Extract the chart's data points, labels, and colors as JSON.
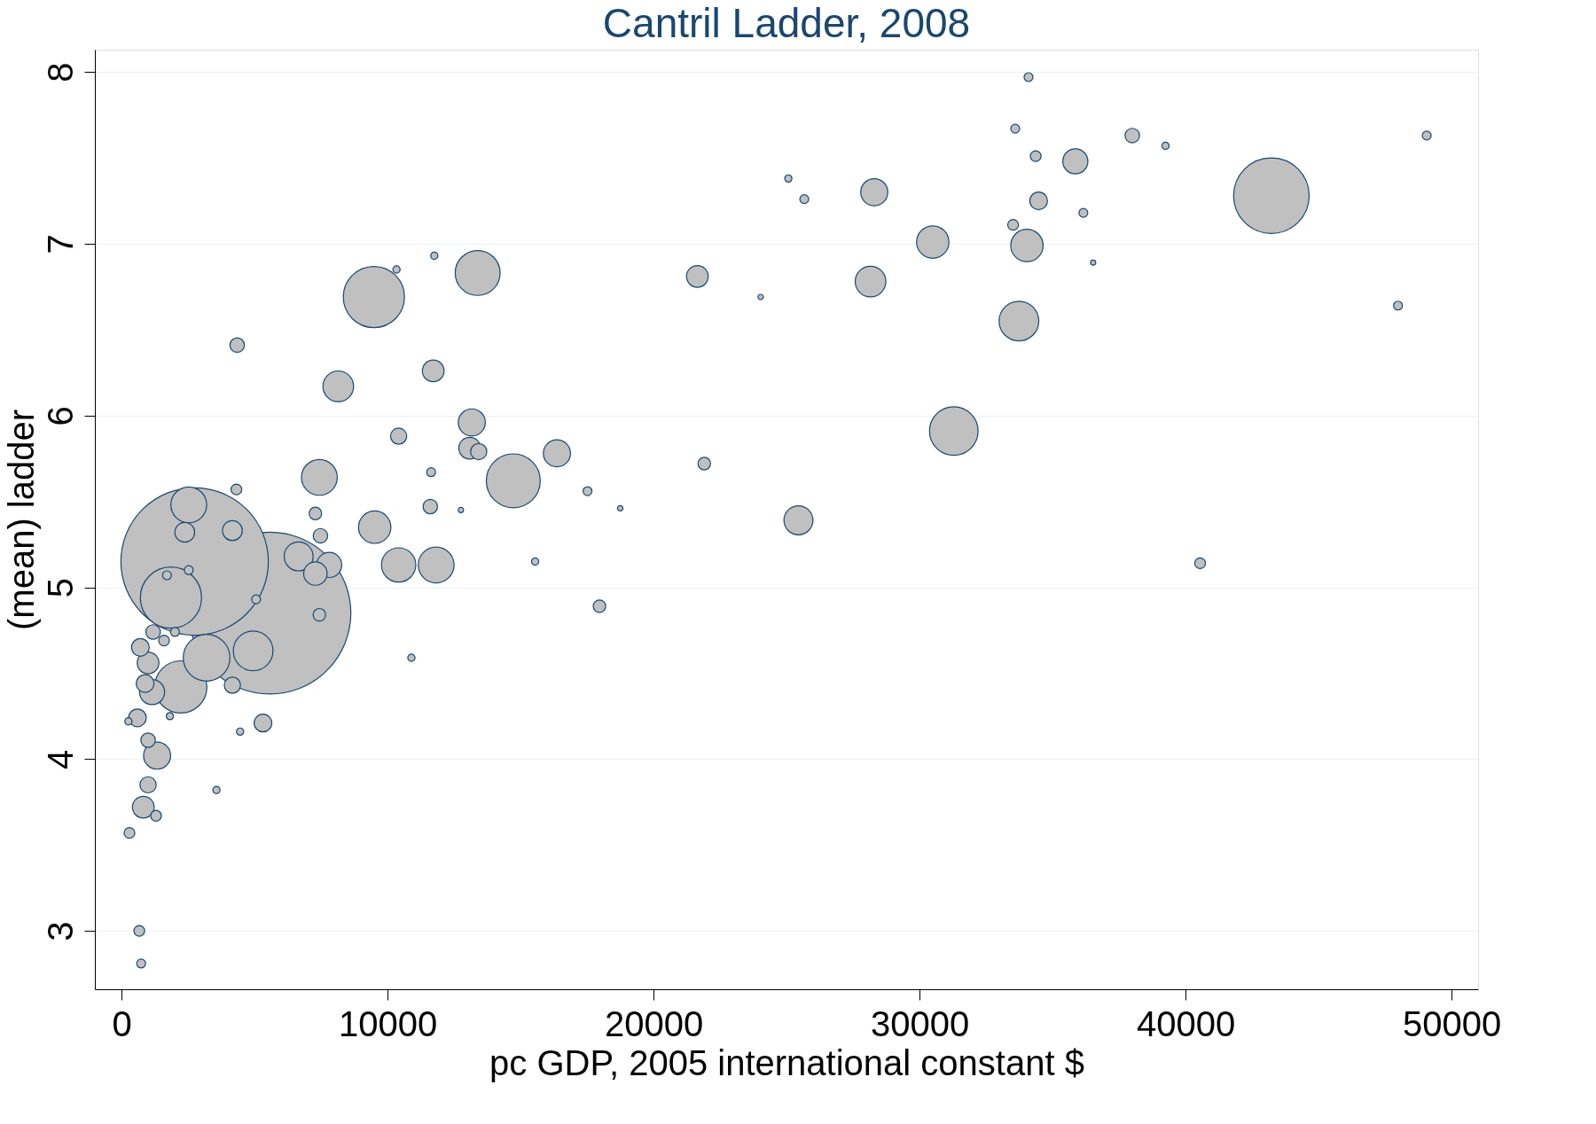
{
  "chart_data": {
    "type": "bubble",
    "title": "Cantril Ladder, 2008",
    "xlabel": "pc GDP, 2005 international constant $",
    "ylabel": "(mean) ladder",
    "color": "#c0c0c0",
    "x": [
      34100,
      33600,
      38000,
      39250,
      49070,
      34370,
      35860,
      25070,
      28300,
      25670,
      34480,
      36160,
      43230,
      33520,
      30500,
      34040,
      36530,
      21650,
      28160,
      24030,
      33740,
      47990,
      13390,
      9490,
      10340,
      11760,
      4350,
      8150,
      11720,
      13170,
      10420,
      13090,
      13430,
      16370,
      14730,
      21910,
      31290,
      7440,
      11640,
      17520,
      18750,
      11610,
      12760,
      7290,
      25450,
      9520,
      7480,
      4320,
      4170,
      2530,
      2380,
      6660,
      7810,
      7290,
      10420,
      11830,
      15550,
      40550,
      17970,
      7440,
      2530,
      1710,
      1860,
      5060,
      2750,
      5580,
      4950,
      3200,
      1190,
      2010,
      1600,
      710,
      1000,
      890,
      1150,
      2230,
      4170,
      5320,
      4460,
      600,
      260,
      1820,
      10900,
      1000,
      1340,
      1000,
      820,
      1300,
      3570,
      300,
      670,
      740
    ],
    "values": [
      7.97,
      7.67,
      7.63,
      7.57,
      7.63,
      7.51,
      7.48,
      7.38,
      7.3,
      7.26,
      7.25,
      7.18,
      7.28,
      7.11,
      7.01,
      6.99,
      6.89,
      6.81,
      6.78,
      6.69,
      6.55,
      6.64,
      6.83,
      6.69,
      6.85,
      6.93,
      6.41,
      6.17,
      6.26,
      5.96,
      5.88,
      5.81,
      5.79,
      5.78,
      5.62,
      5.72,
      5.91,
      5.64,
      5.67,
      5.56,
      5.46,
      5.47,
      5.45,
      5.43,
      5.39,
      5.35,
      5.3,
      5.57,
      5.33,
      5.48,
      5.32,
      5.18,
      5.13,
      5.08,
      5.13,
      5.13,
      5.15,
      5.14,
      4.89,
      4.84,
      5.1,
      5.07,
      4.94,
      4.93,
      5.15,
      4.85,
      4.63,
      4.59,
      4.74,
      4.74,
      4.69,
      4.65,
      4.56,
      4.44,
      4.39,
      4.42,
      4.43,
      4.21,
      4.16,
      4.24,
      4.22,
      4.25,
      4.59,
      4.11,
      4.02,
      3.85,
      3.72,
      3.67,
      3.82,
      3.57,
      3.0,
      2.81
    ],
    "sizes": [
      0.003,
      0.003,
      0.008,
      0.002,
      0.003,
      0.0044,
      0.024,
      0.002,
      0.028,
      0.003,
      0.012,
      0.003,
      0.218,
      0.0044,
      0.04,
      0.04,
      0.001,
      0.018,
      0.036,
      0.0011,
      0.06,
      0.003,
      0.077,
      0.143,
      0.002,
      0.002,
      0.008,
      0.036,
      0.018,
      0.028,
      0.01,
      0.018,
      0.01,
      0.028,
      0.111,
      0.006,
      0.09,
      0.049,
      0.003,
      0.003,
      0.0011,
      0.008,
      0.0011,
      0.006,
      0.032,
      0.04,
      0.008,
      0.0044,
      0.015,
      0.049,
      0.015,
      0.032,
      0.024,
      0.021,
      0.045,
      0.049,
      0.002,
      0.0044,
      0.006,
      0.006,
      0.003,
      0.003,
      0.143,
      0.003,
      0.83,
      1,
      0.06,
      0.083,
      0.008,
      0.003,
      0.0044,
      0.012,
      0.018,
      0.012,
      0.024,
      0.104,
      0.01,
      0.012,
      0.002,
      0.012,
      0.002,
      0.002,
      0.002,
      0.008,
      0.028,
      0.01,
      0.018,
      0.0044,
      0.002,
      0.0044,
      0.0044,
      0.003
    ],
    "xlim": [
      -1000,
      51000
    ],
    "ylim": [
      2.66,
      8.13
    ],
    "xticks": [
      0,
      10000,
      20000,
      30000,
      40000,
      50000
    ],
    "yticks": [
      3,
      4,
      5,
      6,
      7,
      8
    ],
    "grid": "y"
  }
}
